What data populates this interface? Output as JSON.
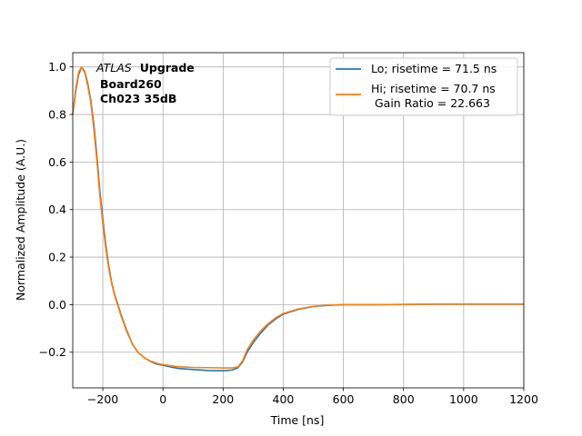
{
  "chart_data": {
    "type": "line",
    "annotation": {
      "atlas": "ATLAS",
      "upgrade": "Upgrade",
      "board": "Board260",
      "channel": "Ch023 35dB"
    },
    "xlabel": "Time [ns]",
    "ylabel": "Normalized Amplitude (A.U.)",
    "xlim": [
      -300,
      1200
    ],
    "ylim": [
      -0.35,
      1.06
    ],
    "xticks": [
      -200,
      0,
      200,
      400,
      600,
      800,
      1000,
      1200
    ],
    "xtick_labels": [
      "−200",
      "0",
      "200",
      "400",
      "600",
      "800",
      "1000",
      "1200"
    ],
    "yticks": [
      -0.2,
      0.0,
      0.2,
      0.4,
      0.6,
      0.8,
      1.0
    ],
    "ytick_labels": [
      "−0.2",
      "0.0",
      "0.2",
      "0.4",
      "0.6",
      "0.8",
      "1.0"
    ],
    "grid": true,
    "legend_position": "top-right",
    "series": [
      {
        "name": "Lo; risetime = 71.5 ns",
        "color": "#1f77b4",
        "x": [
          -300,
          -290,
          -280,
          -270,
          -260,
          -250,
          -240,
          -230,
          -220,
          -210,
          -200,
          -190,
          -180,
          -170,
          -160,
          -150,
          -140,
          -120,
          -100,
          -80,
          -60,
          -40,
          -20,
          0,
          25,
          50,
          100,
          150,
          200,
          230,
          250,
          265,
          280,
          300,
          325,
          350,
          375,
          400,
          450,
          500,
          550,
          600,
          700,
          800,
          900,
          1000,
          1100,
          1200
        ],
        "y": [
          0.8,
          0.9,
          0.97,
          1.0,
          0.98,
          0.93,
          0.86,
          0.76,
          0.63,
          0.48,
          0.36,
          0.25,
          0.16,
          0.09,
          0.04,
          0.0,
          -0.04,
          -0.11,
          -0.17,
          -0.205,
          -0.225,
          -0.24,
          -0.25,
          -0.255,
          -0.262,
          -0.268,
          -0.273,
          -0.277,
          -0.278,
          -0.275,
          -0.265,
          -0.24,
          -0.2,
          -0.16,
          -0.12,
          -0.085,
          -0.06,
          -0.04,
          -0.02,
          -0.008,
          -0.003,
          0.0,
          0.0,
          0.001,
          0.002,
          0.002,
          0.002,
          0.002
        ]
      },
      {
        "name": "Hi; risetime = 70.7 ns\n Gain Ratio = 22.663",
        "color": "#ff7f0e",
        "x": [
          -300,
          -290,
          -280,
          -270,
          -260,
          -250,
          -240,
          -230,
          -220,
          -210,
          -200,
          -190,
          -180,
          -170,
          -160,
          -150,
          -140,
          -120,
          -100,
          -80,
          -60,
          -40,
          -20,
          0,
          25,
          50,
          100,
          150,
          200,
          230,
          250,
          265,
          280,
          300,
          325,
          350,
          375,
          400,
          450,
          500,
          550,
          600,
          700,
          800,
          900,
          1000,
          1100,
          1200
        ],
        "y": [
          0.8,
          0.91,
          0.98,
          1.0,
          0.975,
          0.92,
          0.85,
          0.74,
          0.61,
          0.46,
          0.34,
          0.235,
          0.15,
          0.085,
          0.035,
          -0.005,
          -0.045,
          -0.115,
          -0.17,
          -0.205,
          -0.225,
          -0.238,
          -0.247,
          -0.252,
          -0.257,
          -0.261,
          -0.264,
          -0.265,
          -0.266,
          -0.266,
          -0.262,
          -0.235,
          -0.19,
          -0.15,
          -0.11,
          -0.08,
          -0.055,
          -0.037,
          -0.018,
          -0.007,
          -0.002,
          0.0,
          0.0,
          0.001,
          0.002,
          0.002,
          0.002,
          0.002
        ]
      }
    ]
  }
}
